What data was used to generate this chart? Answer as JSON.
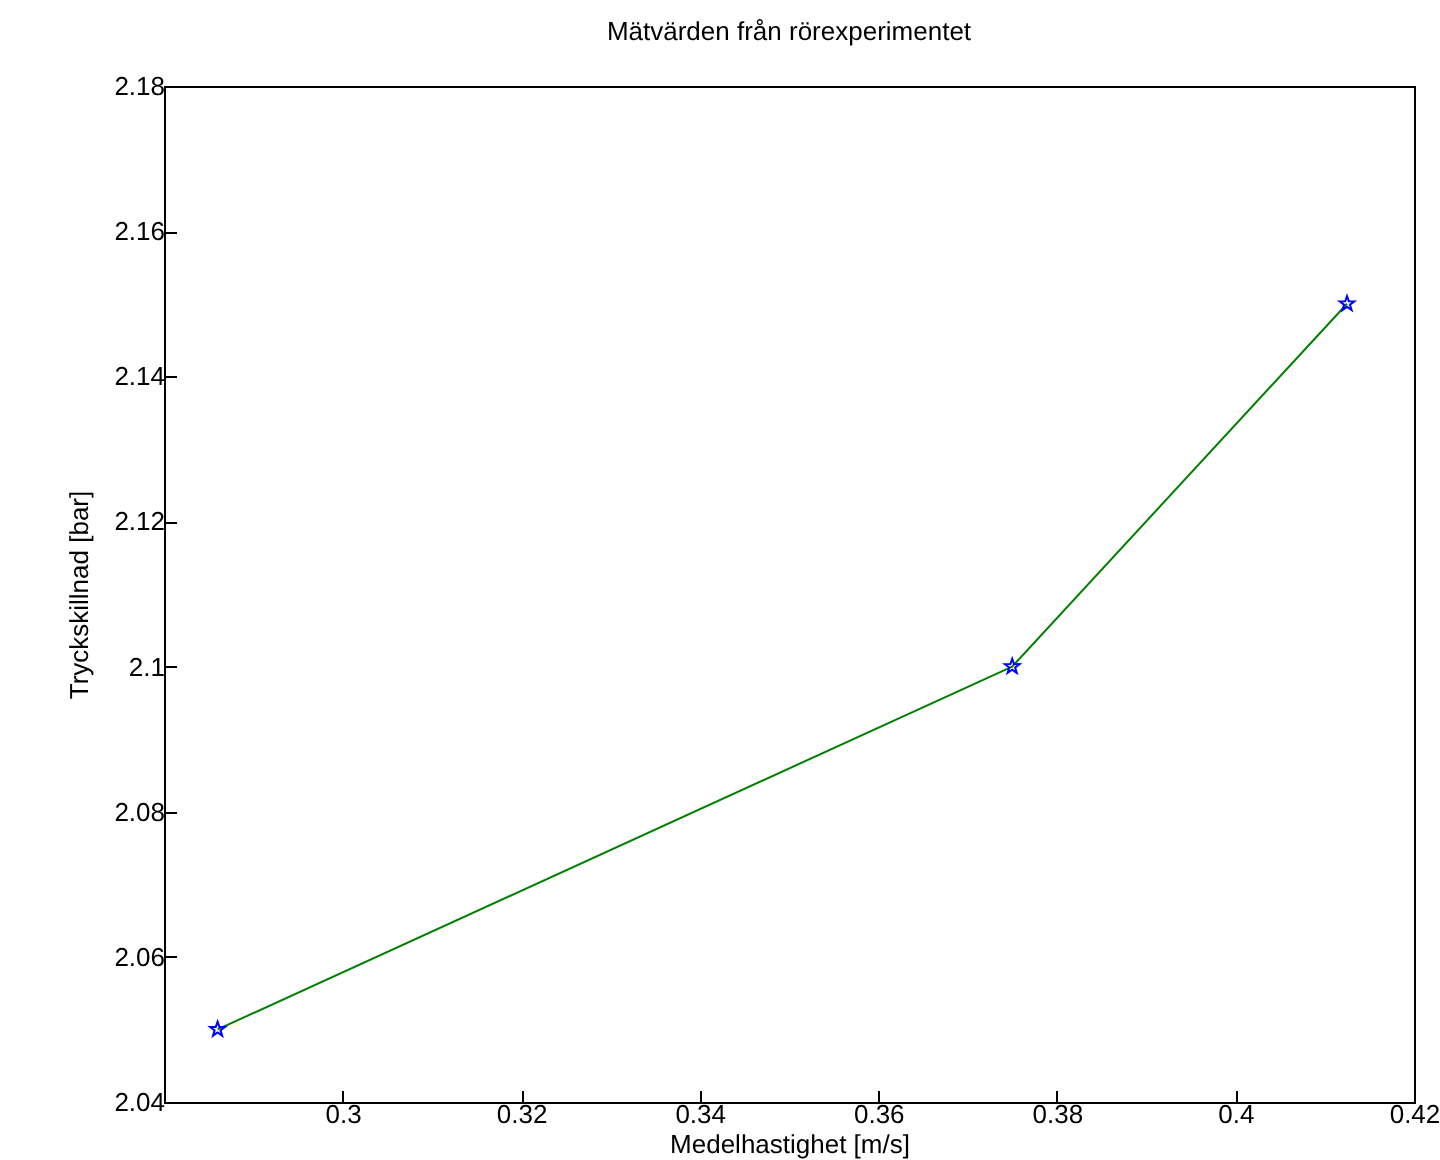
{
  "chart_data": {
    "type": "line",
    "title": "Mätvärden från rörexperimentet",
    "xlabel": "Medelhastighet [m/s]",
    "ylabel": "Tryckskillnad [bar]",
    "x": [
      0.286,
      0.375,
      0.4125
    ],
    "series": [
      {
        "color": "#008000",
        "values": [
          2.05,
          2.1,
          2.15
        ],
        "line_style": "solid"
      },
      {
        "type": "scatter",
        "color": "#0000ff",
        "values": [
          2.05,
          2.1,
          2.15
        ],
        "marker": "star"
      }
    ],
    "xlim": [
      0.28,
      0.42
    ],
    "xticks": [
      0.3,
      0.32,
      0.34,
      0.36,
      0.38,
      0.4,
      0.42
    ],
    "ylim": [
      2.04,
      2.18
    ],
    "yticks": [
      2.04,
      2.06,
      2.08,
      2.1,
      2.12,
      2.14,
      2.16,
      2.18
    ],
    "grid": false
  }
}
